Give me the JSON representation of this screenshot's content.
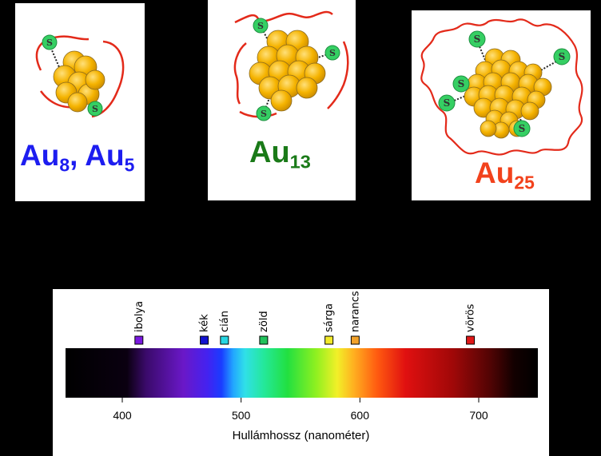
{
  "clusters": [
    {
      "formula_a": "Au",
      "sub_a": "8",
      "sep": ", ",
      "formula_b": "Au",
      "sub_b": "5",
      "color": "#1d1df0"
    },
    {
      "formula": "Au",
      "sub": "13",
      "color": "#1a7a18"
    },
    {
      "formula": "Au",
      "sub": "25",
      "color": "#f2421c"
    }
  ],
  "ligand_symbol": "S",
  "spectrum": {
    "axis_title": "Hullámhossz (nanométer)",
    "ticks": [
      {
        "label": "400",
        "value": 400
      },
      {
        "label": "500",
        "value": 500
      },
      {
        "label": "600",
        "value": 600
      },
      {
        "label": "700",
        "value": 700
      }
    ],
    "range_nm": [
      355,
      750
    ],
    "colors": [
      {
        "name": "ibolya",
        "nm": 414,
        "hex": "#7a18e0"
      },
      {
        "name": "kék",
        "nm": 469,
        "hex": "#1313d0"
      },
      {
        "name": "cián",
        "nm": 486,
        "hex": "#28d6e2"
      },
      {
        "name": "zöld",
        "nm": 519,
        "hex": "#22c25c"
      },
      {
        "name": "sárga",
        "nm": 574,
        "hex": "#f2ea2a"
      },
      {
        "name": "narancs",
        "nm": 596,
        "hex": "#f2a22a"
      },
      {
        "name": "vörös",
        "nm": 693,
        "hex": "#e01818"
      }
    ]
  }
}
